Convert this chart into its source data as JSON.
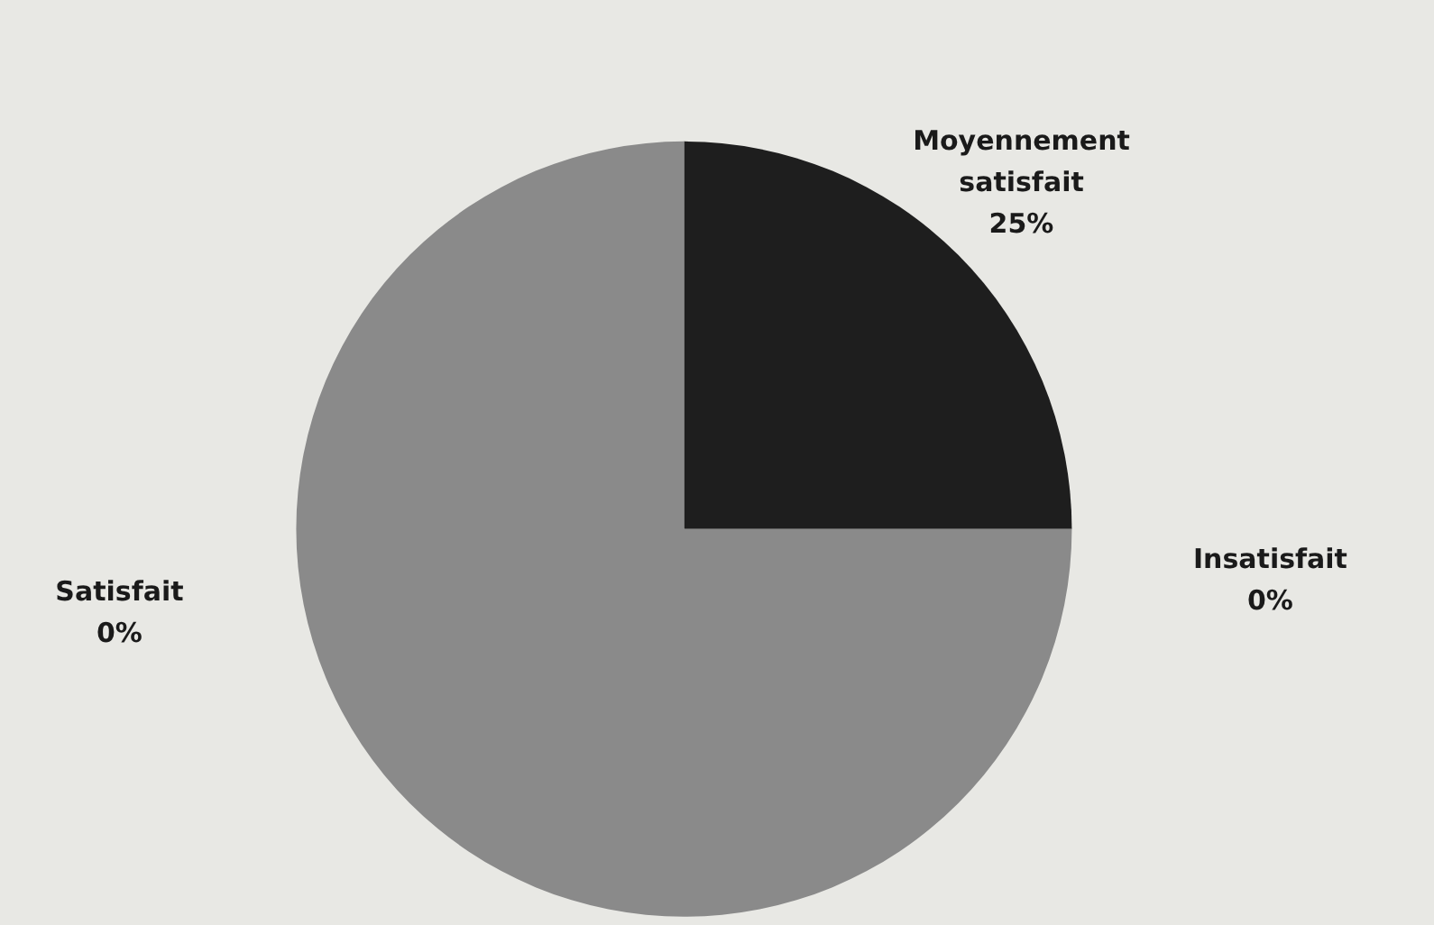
{
  "chart_data": {
    "type": "pie",
    "categories": [
      "Moyennement satisfait",
      "Insatisfait",
      null,
      "Satisfait"
    ],
    "values": [
      25,
      0,
      75,
      0
    ],
    "value_labels": [
      "25%",
      "0%",
      null,
      "0%"
    ],
    "colors": [
      "#1e1e1e",
      "#8a8a8a",
      "#8a8a8a",
      "#8a8a8a"
    ],
    "legend": false
  }
}
